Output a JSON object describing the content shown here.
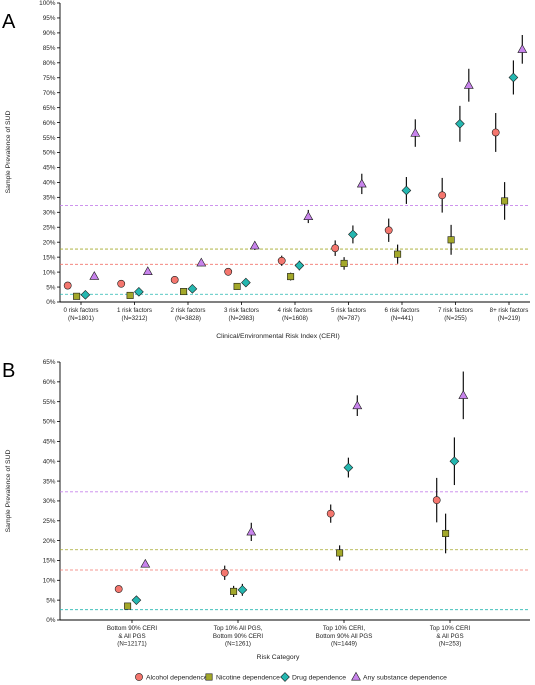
{
  "panels": [
    {
      "letter": "A",
      "ylabel": "Sample Prevalence of SUD",
      "xlabel": "Clinical/Environmental Risk Index (CERI)"
    },
    {
      "letter": "B",
      "ylabel": "Sample Prevalence of SUD",
      "xlabel": "Risk Category"
    }
  ],
  "legend": [
    {
      "label": "Alcohol dependence",
      "marker": "circle",
      "color": "#f4766e"
    },
    {
      "label": "Nicotine dependence",
      "marker": "square",
      "color": "#a3a82a"
    },
    {
      "label": "Drug dependence",
      "marker": "diamond",
      "color": "#25b7b0"
    },
    {
      "label": "Any substance dependence",
      "marker": "triangle",
      "color": "#c884ec"
    }
  ],
  "chart_data": [
    {
      "type": "scatter",
      "panel": "A",
      "title": "",
      "xlabel": "Clinical/Environmental Risk Index (CERI)",
      "ylabel": "Sample Prevalence of SUD",
      "ylim": [
        0,
        100
      ],
      "yticks": [
        0,
        5,
        10,
        15,
        20,
        25,
        30,
        35,
        40,
        45,
        50,
        55,
        60,
        65,
        70,
        75,
        80,
        85,
        90,
        95,
        100
      ],
      "ytick_format": "percent",
      "grid": false,
      "categories": [
        [
          "0 risk factors",
          "(N=1801)"
        ],
        [
          "1 risk factors",
          "(N=3212)"
        ],
        [
          "2 risk factors",
          "(N=3828)"
        ],
        [
          "3 risk factors",
          "(N=2983)"
        ],
        [
          "4 risk factors",
          "(N=1608)"
        ],
        [
          "5 risk factors",
          "(N=787)"
        ],
        [
          "6 risk factors",
          "(N=441)"
        ],
        [
          "7 risk factors",
          "(N=255)"
        ],
        [
          "8+ risk factors",
          "(N=219)"
        ]
      ],
      "reference_lines": [
        {
          "series": "Any substance dependence",
          "y": 32.3
        },
        {
          "series": "Nicotine dependence",
          "y": 17.7
        },
        {
          "series": "Alcohol dependence",
          "y": 12.6
        },
        {
          "series": "Drug dependence",
          "y": 2.6
        }
      ],
      "series": [
        {
          "name": "Alcohol dependence",
          "values": [
            5.5,
            6.1,
            7.4,
            10.1,
            13.8,
            18.0,
            24.0,
            35.7,
            56.7
          ],
          "err": [
            0.9,
            0.9,
            0.8,
            1.1,
            1.7,
            2.6,
            3.9,
            5.8,
            6.5
          ]
        },
        {
          "name": "Nicotine dependence",
          "values": [
            1.9,
            2.2,
            3.5,
            5.2,
            8.5,
            12.9,
            16.0,
            20.8,
            33.8
          ],
          "err": [
            0.6,
            0.5,
            0.6,
            0.8,
            1.3,
            2.1,
            3.2,
            5.0,
            6.3
          ]
        },
        {
          "name": "Drug dependence",
          "values": [
            2.4,
            3.4,
            4.4,
            6.5,
            12.2,
            22.6,
            37.3,
            59.6,
            75.1
          ],
          "err": [
            0.7,
            0.6,
            0.6,
            0.9,
            1.6,
            3.0,
            4.5,
            6.0,
            5.7
          ]
        },
        {
          "name": "Any substance dependence",
          "values": [
            8.6,
            10.2,
            13.1,
            18.8,
            28.6,
            39.5,
            56.5,
            72.5,
            84.5
          ],
          "err": [
            1.1,
            1.0,
            1.1,
            1.4,
            2.2,
            3.4,
            4.6,
            5.5,
            4.8
          ]
        }
      ]
    },
    {
      "type": "scatter",
      "panel": "B",
      "title": "",
      "xlabel": "Risk Category",
      "ylabel": "Sample Prevalence of SUD",
      "ylim": [
        0,
        65
      ],
      "yticks": [
        0,
        5,
        10,
        15,
        20,
        25,
        30,
        35,
        40,
        45,
        50,
        55,
        60,
        65
      ],
      "ytick_format": "percent",
      "grid": false,
      "categories": [
        [
          "Bottom 90% CERI",
          "& All PGS",
          "(N=12171)"
        ],
        [
          "Top 10% All PGS,",
          "Bottom 90% CERI",
          "(N=1261)"
        ],
        [
          "Top 10% CERI,",
          "Bottom 90% All PGS",
          "(N=1449)"
        ],
        [
          "Top 10% CERI",
          "& All PGS",
          "(N=253)"
        ]
      ],
      "reference_lines": [
        {
          "series": "Any substance dependence",
          "y": 32.3
        },
        {
          "series": "Nicotine dependence",
          "y": 17.7
        },
        {
          "series": "Alcohol dependence",
          "y": 12.6
        },
        {
          "series": "Drug dependence",
          "y": 2.6
        }
      ],
      "series": [
        {
          "name": "Alcohol dependence",
          "values": [
            7.8,
            11.9,
            26.8,
            30.2
          ],
          "err": [
            0.5,
            1.8,
            2.3,
            5.6
          ]
        },
        {
          "name": "Nicotine dependence",
          "values": [
            3.5,
            7.2,
            16.9,
            21.8
          ],
          "err": [
            0.4,
            1.4,
            1.9,
            5.0
          ]
        },
        {
          "name": "Drug dependence",
          "values": [
            5.0,
            7.6,
            38.4,
            40.0
          ],
          "err": [
            0.4,
            1.5,
            2.5,
            6.0
          ]
        },
        {
          "name": "Any substance dependence",
          "values": [
            14.1,
            22.2,
            54.0,
            56.6
          ],
          "err": [
            0.6,
            2.3,
            2.6,
            6.0
          ]
        }
      ]
    }
  ]
}
